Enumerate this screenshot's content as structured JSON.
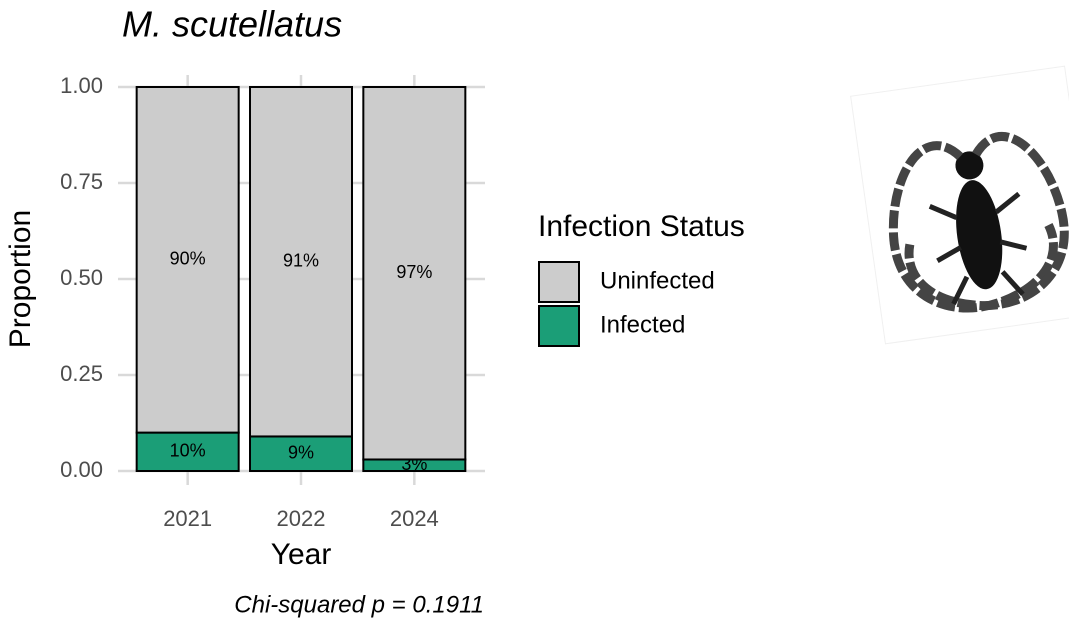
{
  "chart_data": {
    "type": "stacked-bar",
    "title": "M. scutellatus",
    "x_label": "Year",
    "y_label": "Proportion",
    "caption": "Chi-squared p = 0.1911",
    "legend_title": "Infection Status",
    "categories": [
      "2021",
      "2022",
      "2024"
    ],
    "series": [
      {
        "name": "Infected",
        "color": "#1b9e77",
        "values": [
          0.1,
          0.09,
          0.03
        ],
        "value_labels": [
          "10%",
          "9%",
          "3%"
        ]
      },
      {
        "name": "Uninfected",
        "color": "#cccccc",
        "values": [
          0.9,
          0.91,
          0.97
        ],
        "value_labels": [
          "90%",
          "91%",
          "97%"
        ]
      }
    ],
    "ylim": [
      0,
      1
    ],
    "yticks": [
      {
        "value": 0,
        "label": "0.00"
      },
      {
        "value": 0.25,
        "label": "0.25"
      },
      {
        "value": 0.5,
        "label": "0.50"
      },
      {
        "value": 0.75,
        "label": "0.75"
      },
      {
        "value": 1,
        "label": "1.00"
      }
    ],
    "grid": true
  }
}
